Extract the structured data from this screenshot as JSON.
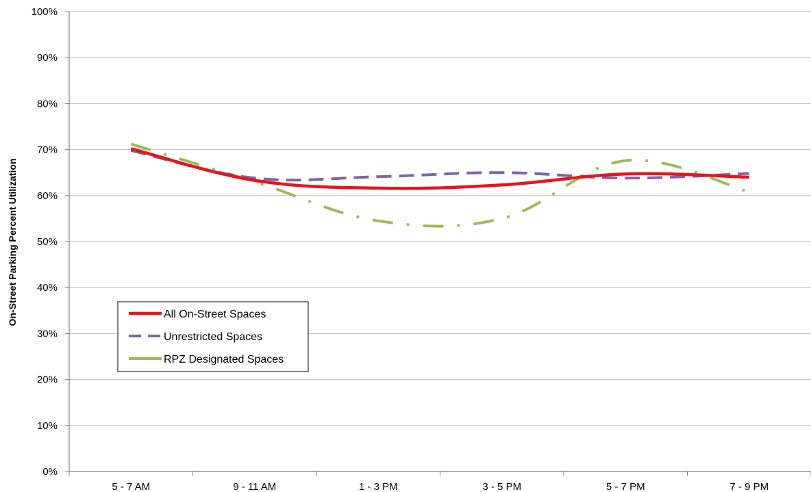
{
  "chart_data": {
    "type": "line",
    "title": "",
    "xlabel": "",
    "ylabel": "On-Street Parking Percent Utilization",
    "categories": [
      "5 - 7 AM",
      "9 - 11 AM",
      "1 - 3 PM",
      "3 - 5 PM",
      "5 - 7 PM",
      "7 - 9 PM"
    ],
    "y_tick_labels": [
      "0%",
      "10%",
      "20%",
      "30%",
      "40%",
      "50%",
      "60%",
      "70%",
      "80%",
      "90%",
      "100%"
    ],
    "ylim": [
      0,
      100
    ],
    "y_unit": "%",
    "grid": "horizontal",
    "legend_position": "lower-left",
    "series": [
      {
        "name": "All On-Street Spaces",
        "color": "#e8141c",
        "style": "solid",
        "values": [
          70.2,
          63.3,
          61.6,
          62.3,
          64.7,
          64.0
        ]
      },
      {
        "name": "Unrestricted Spaces",
        "color": "#8064a2",
        "style": "dashed",
        "values": [
          69.8,
          63.8,
          64.1,
          65.0,
          63.8,
          64.8
        ]
      },
      {
        "name": "RPZ Designated Spaces",
        "color": "#9bbb59",
        "style": "dash-dot",
        "values": [
          71.2,
          63.0,
          54.5,
          55.0,
          67.6,
          60.8
        ]
      }
    ]
  }
}
